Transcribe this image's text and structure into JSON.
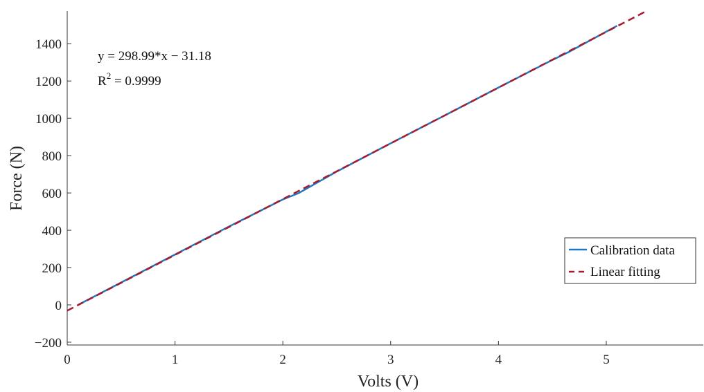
{
  "chart_data": {
    "type": "line",
    "xlabel": "Volts (V)",
    "ylabel": "Force (N)",
    "xlim": [
      0,
      5.9
    ],
    "ylim": [
      -215,
      1575
    ],
    "x_ticks": [
      0,
      1,
      2,
      3,
      4,
      5
    ],
    "x_tick_labels": [
      "0",
      "1",
      "2",
      "3",
      "4",
      "5"
    ],
    "y_ticks": [
      -200,
      0,
      200,
      400,
      600,
      800,
      1000,
      1200,
      1400
    ],
    "y_tick_labels": [
      "−200",
      "0",
      "200",
      "400",
      "600",
      "800",
      "1000",
      "1200",
      "1400"
    ],
    "grid": false,
    "legend_position": "lower-right",
    "annotations": {
      "equation": "y = 298.99*x − 31.18",
      "r2_prefix": "R",
      "r2_exponent": "2",
      "r2_value": " = 0.9999"
    },
    "series": [
      {
        "name": "Calibration data",
        "style": "solid",
        "color": "#1f77c0",
        "x": [
          0.1,
          0.5,
          1.0,
          1.5,
          2.0,
          2.15,
          2.5,
          3.0,
          3.5,
          4.0,
          4.5,
          4.65,
          5.1
        ],
        "y": [
          0,
          120,
          270,
          420,
          565,
          600,
          715,
          866,
          1015,
          1165,
          1313,
          1355,
          1496
        ]
      },
      {
        "name": "Linear fitting",
        "style": "dashed",
        "color": "#a51c30",
        "x": [
          0.0,
          5.38
        ],
        "y": [
          -31.18,
          1577.39
        ]
      }
    ]
  }
}
